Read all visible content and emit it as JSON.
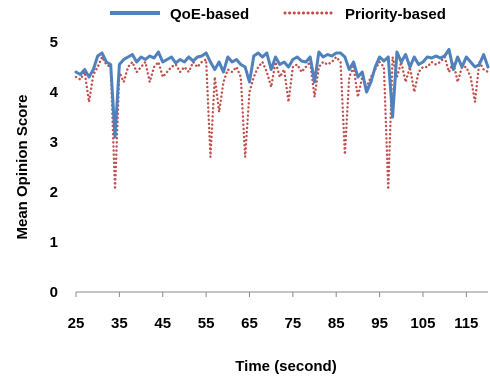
{
  "chart_data": {
    "type": "line",
    "title": "",
    "xlabel": "Time (second)",
    "ylabel": "Mean Opinion Score",
    "xlim": [
      25,
      120
    ],
    "ylim": [
      0,
      5
    ],
    "x_ticks": [
      25,
      35,
      45,
      55,
      65,
      75,
      85,
      95,
      105,
      115
    ],
    "y_ticks": [
      0,
      1,
      2,
      3,
      4,
      5
    ],
    "grid": false,
    "legend_position": "top",
    "x": [
      25,
      26,
      27,
      28,
      29,
      30,
      31,
      32,
      33,
      34,
      35,
      36,
      37,
      38,
      39,
      40,
      41,
      42,
      43,
      44,
      45,
      46,
      47,
      48,
      49,
      50,
      51,
      52,
      53,
      54,
      55,
      56,
      57,
      58,
      59,
      60,
      61,
      62,
      63,
      64,
      65,
      66,
      67,
      68,
      69,
      70,
      71,
      72,
      73,
      74,
      75,
      76,
      77,
      78,
      79,
      80,
      81,
      82,
      83,
      84,
      85,
      86,
      87,
      88,
      89,
      90,
      91,
      92,
      93,
      94,
      95,
      96,
      97,
      98,
      99,
      100,
      101,
      102,
      103,
      104,
      105,
      106,
      107,
      108,
      109,
      110,
      111,
      112,
      113,
      114,
      115,
      116,
      117,
      118,
      119,
      120
    ],
    "series": [
      {
        "name": "QoE-based",
        "color": "#4f81bd",
        "style": "solid",
        "values": [
          4.4,
          4.35,
          4.45,
          4.3,
          4.45,
          4.72,
          4.78,
          4.6,
          4.55,
          3.1,
          4.55,
          4.65,
          4.7,
          4.75,
          4.6,
          4.7,
          4.65,
          4.72,
          4.68,
          4.8,
          4.6,
          4.65,
          4.7,
          4.58,
          4.65,
          4.6,
          4.7,
          4.62,
          4.7,
          4.72,
          4.78,
          4.6,
          4.45,
          4.6,
          4.4,
          4.7,
          4.6,
          4.65,
          4.55,
          4.5,
          4.2,
          4.72,
          4.78,
          4.7,
          4.78,
          4.45,
          4.7,
          4.55,
          4.6,
          4.5,
          4.65,
          4.7,
          4.62,
          4.6,
          4.7,
          4.2,
          4.8,
          4.7,
          4.75,
          4.72,
          4.78,
          4.78,
          4.7,
          4.45,
          4.6,
          4.3,
          4.4,
          4.0,
          4.2,
          4.5,
          4.7,
          4.62,
          4.7,
          3.5,
          4.8,
          4.6,
          4.75,
          4.5,
          4.7,
          4.55,
          4.6,
          4.7,
          4.68,
          4.72,
          4.68,
          4.72,
          4.85,
          4.45,
          4.7,
          4.5,
          4.7,
          4.6,
          4.5,
          4.55,
          4.75,
          4.5
        ]
      },
      {
        "name": "Priority-based",
        "color": "#c0504d",
        "style": "dotted",
        "values": [
          4.3,
          4.25,
          4.4,
          3.8,
          4.35,
          4.5,
          4.7,
          4.55,
          4.5,
          2.05,
          4.4,
          4.2,
          4.5,
          4.6,
          4.4,
          4.5,
          4.6,
          4.2,
          4.5,
          4.6,
          4.3,
          4.4,
          4.5,
          4.55,
          4.4,
          4.5,
          4.4,
          4.6,
          4.5,
          4.6,
          4.65,
          2.7,
          4.3,
          3.6,
          4.2,
          4.45,
          4.4,
          4.5,
          4.3,
          2.7,
          4.0,
          4.3,
          4.5,
          4.6,
          4.4,
          4.1,
          4.6,
          4.3,
          4.45,
          3.8,
          4.5,
          4.55,
          4.4,
          4.5,
          4.6,
          3.9,
          4.5,
          4.6,
          4.55,
          4.6,
          4.7,
          4.6,
          2.75,
          4.3,
          4.5,
          3.9,
          4.3,
          4.1,
          4.3,
          4.45,
          4.6,
          4.5,
          2.05,
          4.7,
          4.3,
          4.6,
          4.2,
          4.5,
          4.0,
          4.4,
          4.5,
          4.5,
          4.6,
          4.55,
          4.6,
          4.7,
          4.4,
          4.6,
          4.2,
          4.5,
          4.5,
          4.3,
          3.8,
          4.6,
          4.45,
          4.4
        ]
      }
    ]
  }
}
